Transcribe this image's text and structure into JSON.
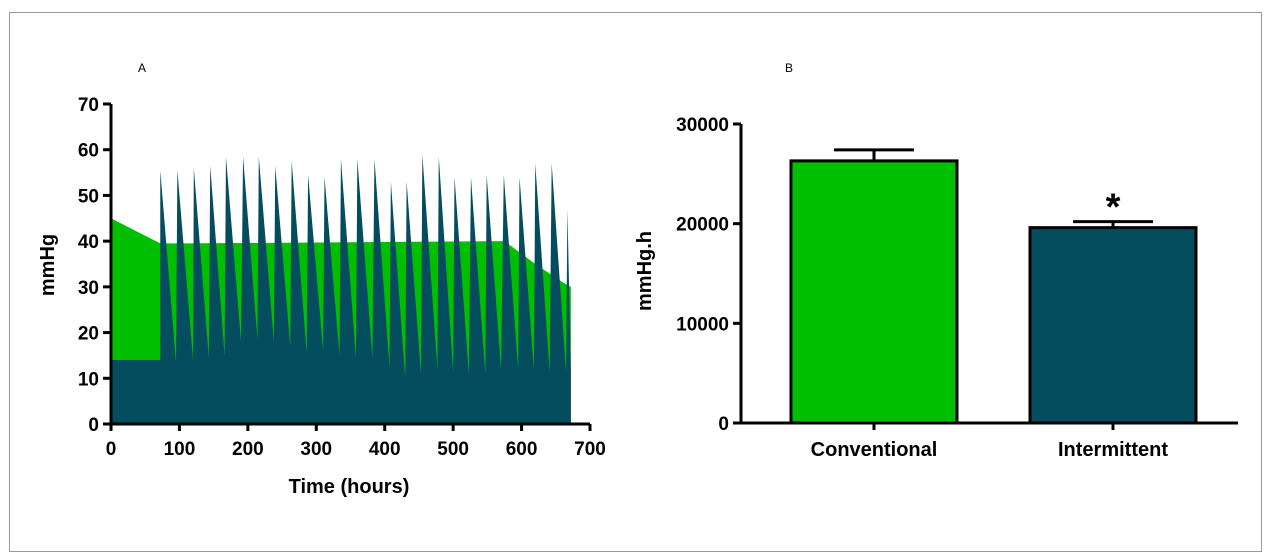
{
  "colors": {
    "conventional": "#00bf00",
    "intermittent": "#044d5e",
    "axis": "#000000"
  },
  "chart_data": [
    {
      "panel": "A",
      "type": "area",
      "xlabel": "Time (hours)",
      "ylabel": "mmHg",
      "xlim": [
        0,
        700
      ],
      "ylim": [
        0,
        70
      ],
      "xticks": [
        "0",
        "100",
        "200",
        "300",
        "400",
        "500",
        "600",
        "700"
      ],
      "yticks": [
        "0",
        "10",
        "20",
        "30",
        "40",
        "50",
        "60",
        "70"
      ],
      "series": [
        {
          "color_key": "conventional",
          "x": [
            0,
            72,
            110,
            575,
            620,
            660,
            672
          ],
          "y": [
            45,
            39.5,
            39.5,
            40,
            35,
            31,
            30
          ]
        },
        {
          "color_key": "intermittent",
          "base": {
            "x": [
              0,
              72
            ],
            "y": [
              14,
              14
            ]
          },
          "cycles": [
            {
              "peak_x": 72,
              "peak": 55.5,
              "end_x": 95,
              "end": 13.5
            },
            {
              "peak_x": 97,
              "peak": 55.5,
              "end_x": 120,
              "end": 14
            },
            {
              "peak_x": 121,
              "peak": 56,
              "end_x": 143,
              "end": 14.5
            },
            {
              "peak_x": 145,
              "peak": 56.5,
              "end_x": 166,
              "end": 15
            },
            {
              "peak_x": 168,
              "peak": 58.5,
              "end_x": 190,
              "end": 18
            },
            {
              "peak_x": 193,
              "peak": 58.5,
              "end_x": 214,
              "end": 18.5
            },
            {
              "peak_x": 216,
              "peak": 58.5,
              "end_x": 238,
              "end": 18
            },
            {
              "peak_x": 240,
              "peak": 56.5,
              "end_x": 262,
              "end": 17
            },
            {
              "peak_x": 264,
              "peak": 57.5,
              "end_x": 286,
              "end": 15.5
            },
            {
              "peak_x": 288,
              "peak": 54.5,
              "end_x": 310,
              "end": 16
            },
            {
              "peak_x": 312,
              "peak": 54,
              "end_x": 334,
              "end": 15
            },
            {
              "peak_x": 336,
              "peak": 58,
              "end_x": 358,
              "end": 14.5
            },
            {
              "peak_x": 360,
              "peak": 58,
              "end_x": 382,
              "end": 14.5
            },
            {
              "peak_x": 385,
              "peak": 58,
              "end_x": 407,
              "end": 12.5
            },
            {
              "peak_x": 409,
              "peak": 53,
              "end_x": 430,
              "end": 10
            },
            {
              "peak_x": 432,
              "peak": 53,
              "end_x": 453,
              "end": 11
            },
            {
              "peak_x": 455,
              "peak": 59,
              "end_x": 477,
              "end": 12
            },
            {
              "peak_x": 479,
              "peak": 58.5,
              "end_x": 500,
              "end": 11.5
            },
            {
              "peak_x": 502,
              "peak": 54,
              "end_x": 523,
              "end": 11
            },
            {
              "peak_x": 526,
              "peak": 54,
              "end_x": 547,
              "end": 11
            },
            {
              "peak_x": 549,
              "peak": 54.5,
              "end_x": 570,
              "end": 12
            },
            {
              "peak_x": 574,
              "peak": 54.5,
              "end_x": 595,
              "end": 12
            },
            {
              "peak_x": 597,
              "peak": 54,
              "end_x": 618,
              "end": 12
            },
            {
              "peak_x": 620,
              "peak": 57,
              "end_x": 641,
              "end": 11.5
            },
            {
              "peak_x": 644,
              "peak": 57,
              "end_x": 665,
              "end": 11.5
            },
            {
              "peak_x": 667,
              "peak": 47,
              "end_x": 672,
              "end": 11.5
            }
          ]
        }
      ]
    },
    {
      "panel": "B",
      "type": "bar",
      "ylabel": "mmHg.h",
      "ylim": [
        0,
        30000
      ],
      "yticks": [
        "0",
        "10000",
        "20000",
        "30000"
      ],
      "categories": [
        "Conventional",
        "Intermittent"
      ],
      "values": [
        26300,
        19600
      ],
      "error": [
        1100,
        600
      ],
      "bar_color_keys": [
        "conventional",
        "intermittent"
      ],
      "annotations": [
        "",
        "*"
      ]
    }
  ]
}
